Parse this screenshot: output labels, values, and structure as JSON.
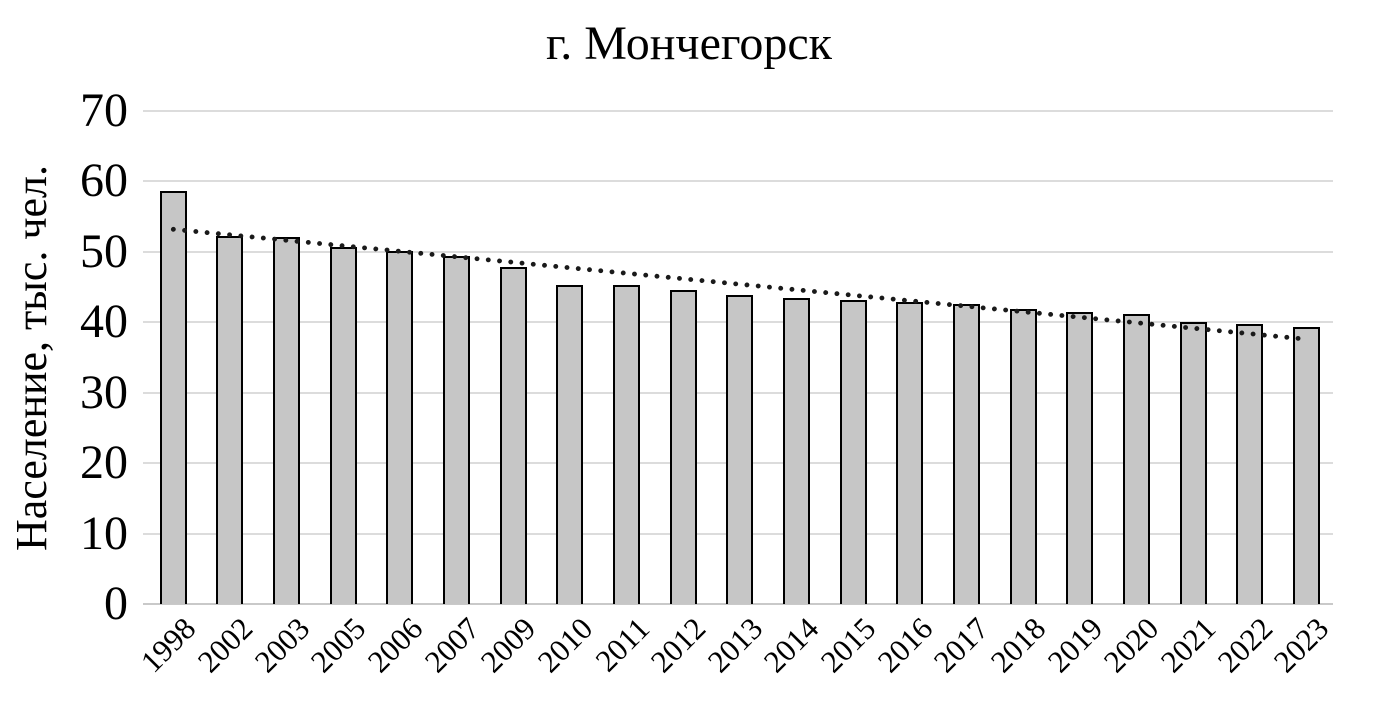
{
  "chart_data": {
    "type": "bar",
    "title": "г. Мончегорск",
    "ylabel": "Население, тыс. чел.",
    "xlabel": "",
    "categories": [
      "1998",
      "2002",
      "2003",
      "2005",
      "2006",
      "2007",
      "2009",
      "2010",
      "2011",
      "2012",
      "2013",
      "2014",
      "2015",
      "2016",
      "2017",
      "2018",
      "2019",
      "2020",
      "2021",
      "2022",
      "2023"
    ],
    "values": [
      58.6,
      52.3,
      52.1,
      50.7,
      50.1,
      49.4,
      47.9,
      45.3,
      45.3,
      44.6,
      43.9,
      43.5,
      43.2,
      42.9,
      42.6,
      41.9,
      41.5,
      41.2,
      40.1,
      39.8,
      39.4
    ],
    "ylim": [
      0,
      70
    ],
    "yticks": [
      0,
      10,
      20,
      30,
      40,
      50,
      60,
      70
    ],
    "grid": "horizontal",
    "legend_position": "none",
    "trendline": {
      "style": "dotted",
      "start_value": 53.2,
      "end_value": 37.6
    },
    "colors": {
      "bar_fill": "#c6c6c6",
      "bar_border": "#000000",
      "gridline": "#dcdcdc",
      "axis_line": "#c9c9c9",
      "trend": "#1a1a1a",
      "text": "#000000",
      "background": "#ffffff"
    }
  }
}
